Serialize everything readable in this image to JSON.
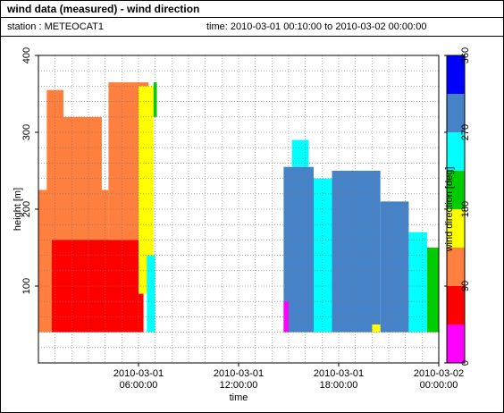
{
  "header": {
    "title": "wind data (measured) - wind direction",
    "station": "station : METEOCAT1",
    "time_range": "time: 2010-03-01 00:10:00 to 2010-03-02 00:00:00"
  },
  "chart_data": {
    "type": "heatmap",
    "xlabel": "time",
    "ylabel": "height [m]",
    "colorbar_label": "wind direction [deg]",
    "x_range_hours": [
      0,
      24
    ],
    "ylim": [
      0,
      400
    ],
    "x_ticks": [
      {
        "hour": 6,
        "line1": "2010-03-01",
        "line2": "06:00:00"
      },
      {
        "hour": 12,
        "line1": "2010-03-01",
        "line2": "12:00:00"
      },
      {
        "hour": 18,
        "line1": "2010-03-01",
        "line2": "18:00:00"
      },
      {
        "hour": 24,
        "line1": "2010-03-02",
        "line2": "00:00:00"
      }
    ],
    "y_ticks": [
      100,
      200,
      300,
      400
    ],
    "colorbar": {
      "ticks": [
        0,
        90,
        180,
        270,
        360
      ],
      "bins": [
        {
          "from": 0,
          "to": 45,
          "color": "#ff00ff"
        },
        {
          "from": 45,
          "to": 90,
          "color": "#ff0000"
        },
        {
          "from": 90,
          "to": 135,
          "color": "#ff7f3f"
        },
        {
          "from": 135,
          "to": 180,
          "color": "#ffff00"
        },
        {
          "from": 180,
          "to": 225,
          "color": "#00cc00"
        },
        {
          "from": 225,
          "to": 270,
          "color": "#00ffff"
        },
        {
          "from": 270,
          "to": 315,
          "color": "#4682c8"
        },
        {
          "from": 315,
          "to": 360,
          "color": "#0000ff"
        }
      ]
    },
    "grid": true,
    "blocks": [
      {
        "t0": 0.0,
        "t1": 4.2,
        "h0": 40,
        "h1": 225,
        "dir": 112
      },
      {
        "t0": 0.8,
        "t1": 6.3,
        "h0": 40,
        "h1": 160,
        "dir": 67
      },
      {
        "t0": 4.2,
        "t1": 6.6,
        "h0": 160,
        "h1": 365,
        "dir": 112
      },
      {
        "t0": 6.0,
        "t1": 6.9,
        "h0": 90,
        "h1": 360,
        "dir": 157
      },
      {
        "t0": 6.5,
        "t1": 7.0,
        "h0": 40,
        "h1": 140,
        "dir": 247
      },
      {
        "t0": 0.5,
        "t1": 1.5,
        "h0": 225,
        "h1": 355,
        "dir": 112
      },
      {
        "t0": 1.5,
        "t1": 3.8,
        "h0": 225,
        "h1": 320,
        "dir": 112
      },
      {
        "t0": 6.9,
        "t1": 7.1,
        "h0": 320,
        "h1": 365,
        "dir": 202
      },
      {
        "t0": 14.7,
        "t1": 16.5,
        "h0": 40,
        "h1": 255,
        "dir": 292
      },
      {
        "t0": 15.2,
        "t1": 16.2,
        "h0": 255,
        "h1": 290,
        "dir": 247
      },
      {
        "t0": 16.5,
        "t1": 17.6,
        "h0": 40,
        "h1": 240,
        "dir": 247
      },
      {
        "t0": 17.6,
        "t1": 20.5,
        "h0": 40,
        "h1": 250,
        "dir": 292
      },
      {
        "t0": 20.5,
        "t1": 22.2,
        "h0": 40,
        "h1": 210,
        "dir": 292
      },
      {
        "t0": 22.2,
        "t1": 23.3,
        "h0": 40,
        "h1": 170,
        "dir": 247
      },
      {
        "t0": 23.3,
        "t1": 24.0,
        "h0": 40,
        "h1": 150,
        "dir": 202
      },
      {
        "t0": 14.7,
        "t1": 15.0,
        "h0": 40,
        "h1": 80,
        "dir": 22
      },
      {
        "t0": 20.0,
        "t1": 20.5,
        "h0": 40,
        "h1": 50,
        "dir": 157
      }
    ]
  }
}
